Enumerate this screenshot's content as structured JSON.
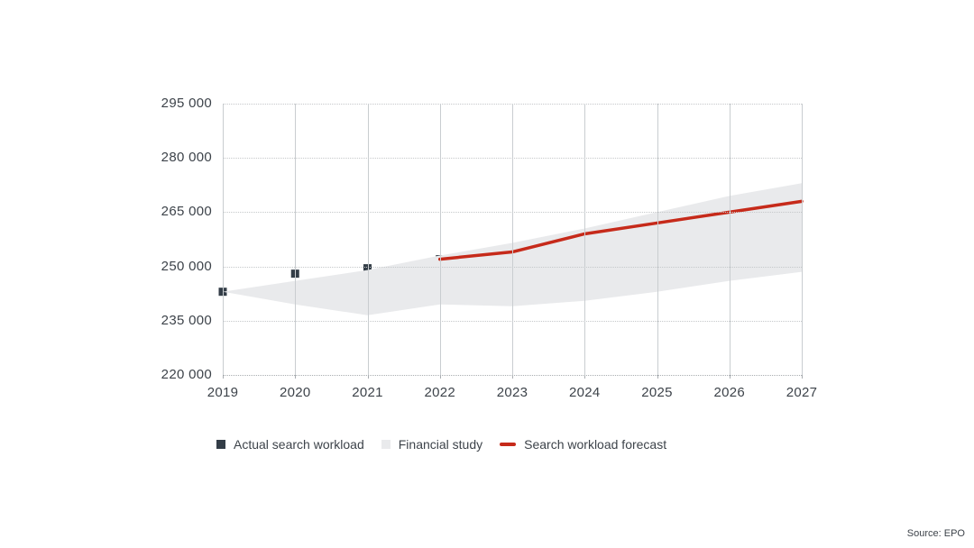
{
  "source": "Source: EPO",
  "colors": {
    "actual": "#333d47",
    "band": "#e9eaec",
    "forecast": "#c62a1a",
    "grid_vertical": "#c9cdd0",
    "grid_horizontal": "#c5c8ca",
    "text": "#3d434a"
  },
  "legend": {
    "items": [
      {
        "label": "Actual search workload",
        "marker": "square",
        "color": "#333d47"
      },
      {
        "label": "Financial study",
        "marker": "square",
        "color": "#e9eaec"
      },
      {
        "label": "Search workload forecast",
        "marker": "line",
        "color": "#c62a1a"
      }
    ]
  },
  "chart_data": {
    "type": "line",
    "title": "",
    "xlabel": "",
    "ylabel": "",
    "x": [
      2019,
      2020,
      2021,
      2022,
      2023,
      2024,
      2025,
      2026,
      2027
    ],
    "x_tick_labels": [
      "2019",
      "2020",
      "2021",
      "2022",
      "2023",
      "2024",
      "2025",
      "2026",
      "2027"
    ],
    "ylim": [
      220000,
      295000
    ],
    "y_ticks": [
      295000,
      280000,
      265000,
      250000,
      235000,
      220000
    ],
    "y_tick_labels": [
      "295 000",
      "280 000",
      "265 000",
      "250 000",
      "235 000",
      "220 000"
    ],
    "grid": true,
    "legend_position": "bottom",
    "series": [
      {
        "name": "Actual search workload",
        "type": "scatter",
        "marker": "square",
        "color": "#333d47",
        "x": [
          2019,
          2020,
          2021,
          2022
        ],
        "values": [
          243000,
          248000,
          249500,
          252000
        ]
      },
      {
        "name": "Financial study",
        "type": "band",
        "color": "#e9eaec",
        "x": [
          2019,
          2020,
          2021,
          2022,
          2023,
          2024,
          2025,
          2026,
          2027
        ],
        "upper": [
          243000,
          246000,
          249000,
          253000,
          256500,
          260500,
          265000,
          269500,
          273000
        ],
        "lower": [
          243000,
          239500,
          236500,
          239500,
          239000,
          240500,
          243000,
          246000,
          248500
        ]
      },
      {
        "name": "Search workload forecast",
        "type": "line",
        "color": "#c62a1a",
        "x": [
          2022,
          2023,
          2024,
          2025,
          2026,
          2027
        ],
        "values": [
          252000,
          254000,
          259000,
          262000,
          265000,
          268000
        ]
      }
    ]
  }
}
